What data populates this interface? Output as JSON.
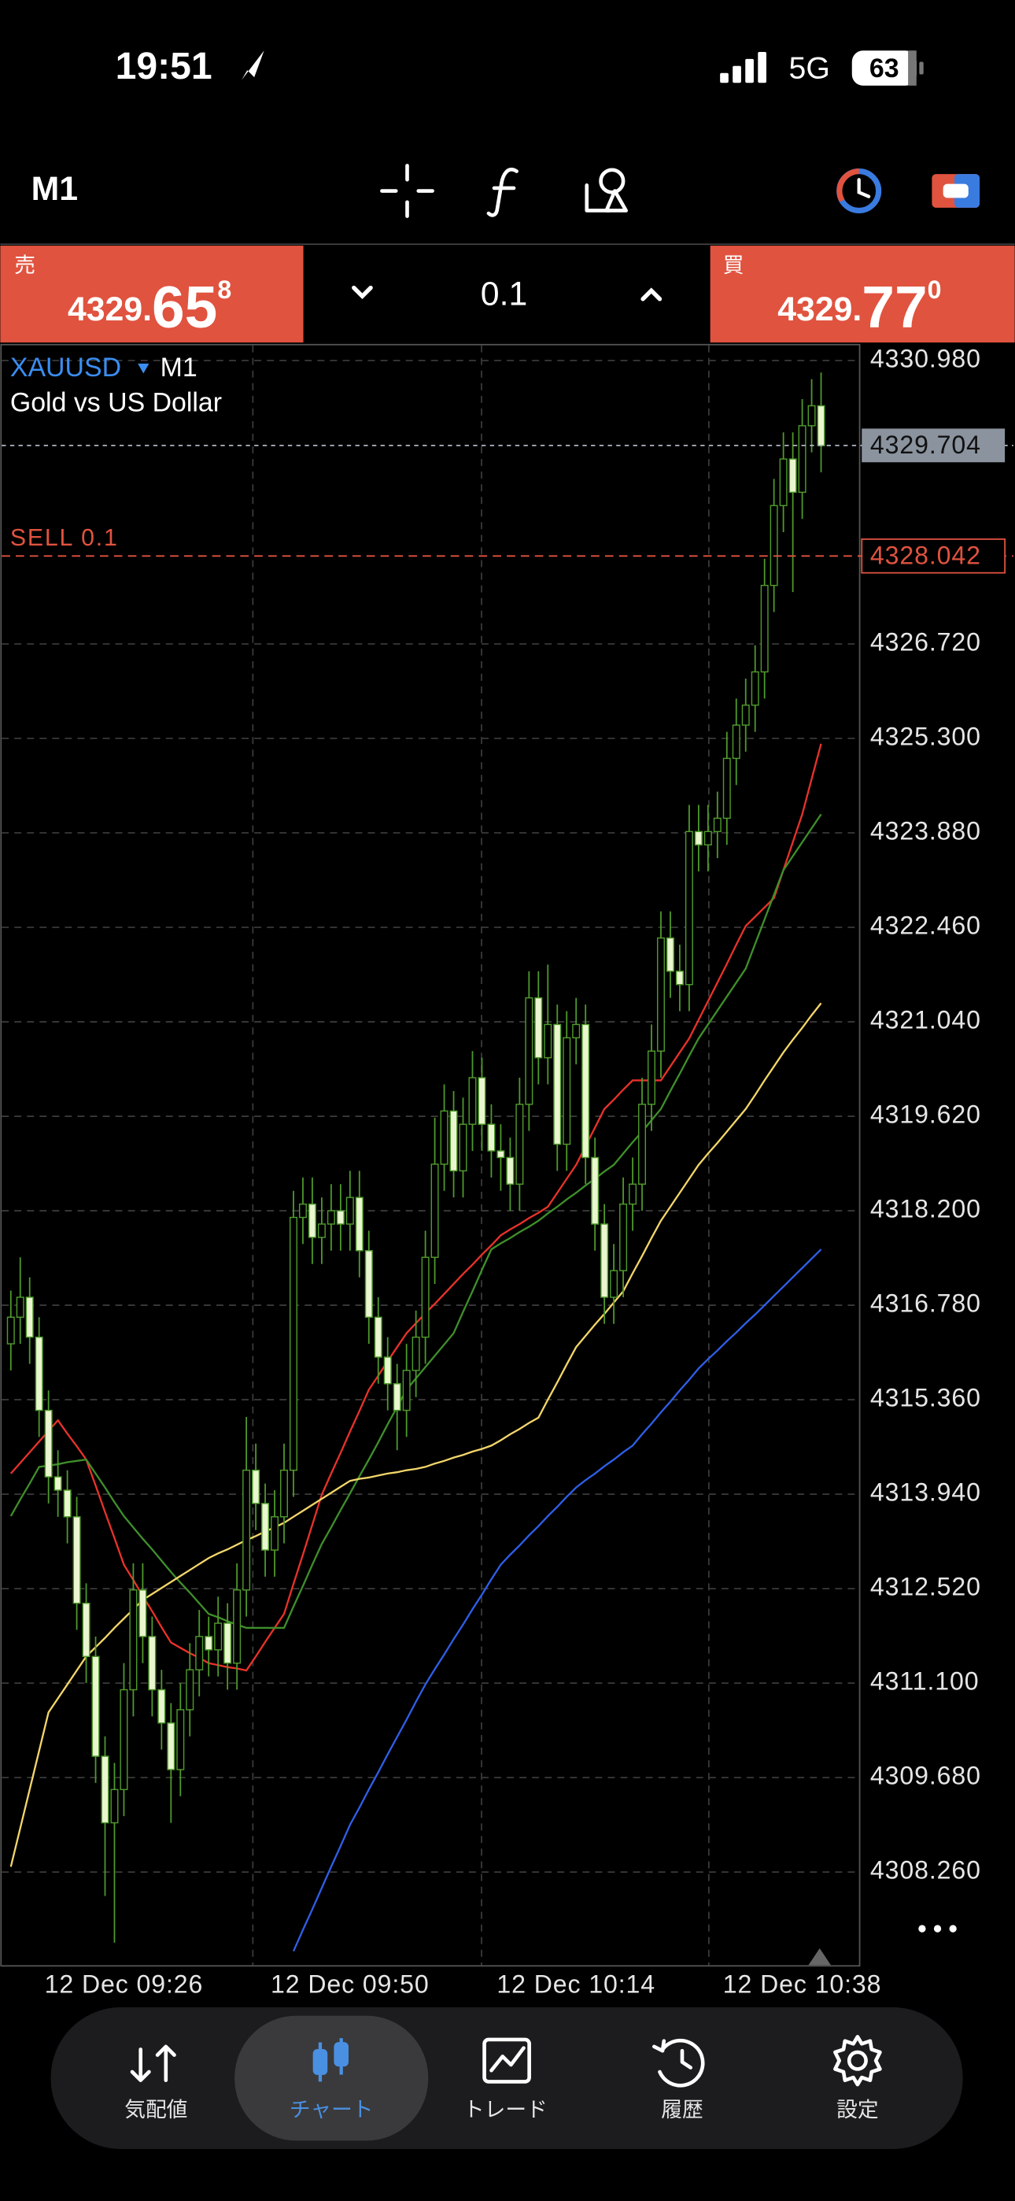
{
  "status_bar": {
    "time": "19:51",
    "network": "5G",
    "battery": "63"
  },
  "toolbar": {
    "timeframe": "M1"
  },
  "trade_panel": {
    "sell": {
      "label": "売",
      "price_small": "4329.",
      "price_big": "65",
      "price_sup": "8"
    },
    "volume": "0.1",
    "buy": {
      "label": "買",
      "price_small": "4329.",
      "price_big": "77",
      "price_sup": "0"
    }
  },
  "chart_data": {
    "type": "candlestick",
    "symbol": "XAUUSD",
    "timeframe": "M1",
    "subtitle": "Gold vs US Dollar",
    "categories": [
      null,
      null,
      null,
      null,
      null,
      null,
      null,
      null,
      null,
      null,
      null,
      null,
      "12 Dec 09:26",
      null,
      null,
      null,
      null,
      null,
      null,
      null,
      null,
      null,
      null,
      null,
      null,
      null,
      null,
      null,
      null,
      null,
      null,
      null,
      null,
      null,
      null,
      null,
      "12 Dec 09:50",
      null,
      null,
      null,
      null,
      null,
      null,
      null,
      null,
      null,
      null,
      null,
      null,
      null,
      null,
      null,
      null,
      null,
      null,
      null,
      null,
      null,
      null,
      null,
      "12 Dec 10:14",
      null,
      null,
      null,
      null,
      null,
      null,
      null,
      null,
      null,
      null,
      null,
      null,
      null,
      null,
      null,
      null,
      null,
      null,
      null,
      null,
      null,
      null,
      null,
      "12 Dec 10:38",
      null,
      null
    ],
    "open": [
      4316.2,
      4316.6,
      4316.9,
      4316.3,
      4315.2,
      4314.2,
      4314.0,
      4313.6,
      4312.3,
      4311.5,
      4310.0,
      4309.0,
      4309.5,
      4311.0,
      4312.5,
      4311.8,
      4311.0,
      4310.5,
      4309.8,
      4310.7,
      4311.3,
      4311.8,
      4311.6,
      4312.0,
      4311.4,
      4312.5,
      4314.3,
      4313.8,
      4313.1,
      4313.6,
      4314.3,
      4318.1,
      4318.3,
      4317.8,
      4318.0,
      4318.2,
      4318.0,
      4318.4,
      4317.6,
      4316.6,
      4316.0,
      4315.6,
      4315.2,
      4315.8,
      4316.3,
      4317.5,
      4318.9,
      4319.7,
      4318.8,
      4319.5,
      4320.2,
      4319.5,
      4319.1,
      4319.0,
      4318.6,
      4319.8,
      4321.4,
      4320.5,
      4321.0,
      4319.2,
      4320.8,
      4321.0,
      4319.0,
      4318.0,
      4316.9,
      4317.3,
      4318.3,
      4318.6,
      4319.8,
      4320.6,
      4322.3,
      4321.8,
      4321.6,
      4323.9,
      4323.7,
      4323.9,
      4324.1,
      4325.0,
      4325.5,
      4325.8,
      4326.3,
      4327.6,
      4328.8,
      4329.5,
      4329.0,
      4330.0,
      4330.3
    ],
    "high": [
      4317.0,
      4317.5,
      4317.2,
      4316.6,
      4315.5,
      4314.6,
      4314.3,
      4313.9,
      4312.6,
      4311.8,
      4310.3,
      4309.9,
      4311.4,
      4312.9,
      4312.9,
      4312.1,
      4311.3,
      4310.8,
      4311.1,
      4311.7,
      4312.2,
      4312.1,
      4312.4,
      4312.3,
      4312.9,
      4315.1,
      4314.7,
      4314.1,
      4314.0,
      4314.7,
      4318.5,
      4318.7,
      4318.7,
      4318.4,
      4318.6,
      4318.6,
      4318.8,
      4318.8,
      4317.9,
      4316.9,
      4316.3,
      4315.9,
      4316.2,
      4316.7,
      4317.9,
      4319.6,
      4320.1,
      4320.0,
      4319.9,
      4320.6,
      4320.5,
      4319.8,
      4319.5,
      4319.3,
      4320.2,
      4321.8,
      4321.8,
      4321.9,
      4321.3,
      4321.2,
      4321.4,
      4321.3,
      4319.3,
      4318.3,
      4317.7,
      4318.7,
      4319.0,
      4320.2,
      4321.0,
      4322.7,
      4322.7,
      4322.2,
      4324.3,
      4324.3,
      4324.3,
      4324.5,
      4325.4,
      4325.9,
      4326.2,
      4326.7,
      4328.0,
      4329.2,
      4329.9,
      4329.9,
      4330.4,
      4330.7,
      4330.8
    ],
    "low": [
      4315.8,
      4316.2,
      4315.9,
      4314.8,
      4313.8,
      4313.6,
      4313.2,
      4311.9,
      4311.1,
      4309.6,
      4307.9,
      4307.2,
      4309.1,
      4310.6,
      4311.4,
      4310.6,
      4310.1,
      4309.0,
      4309.4,
      4310.3,
      4310.9,
      4311.2,
      4311.2,
      4311.0,
      4311.0,
      4312.1,
      4313.4,
      4312.7,
      4312.7,
      4313.2,
      4313.9,
      4317.7,
      4317.4,
      4317.4,
      4317.6,
      4317.6,
      4317.6,
      4317.2,
      4316.2,
      4315.6,
      4315.2,
      4314.6,
      4314.8,
      4315.4,
      4315.9,
      4317.1,
      4318.5,
      4318.4,
      4318.4,
      4319.1,
      4319.1,
      4318.7,
      4318.5,
      4318.2,
      4318.2,
      4319.4,
      4320.1,
      4320.1,
      4318.8,
      4318.8,
      4320.4,
      4318.6,
      4317.6,
      4316.5,
      4316.5,
      4316.9,
      4317.9,
      4318.2,
      4319.4,
      4320.2,
      4321.4,
      4321.2,
      4321.2,
      4323.3,
      4323.3,
      4323.5,
      4323.7,
      4324.6,
      4325.1,
      4325.4,
      4325.9,
      4327.2,
      4328.4,
      4327.5,
      4328.6,
      4329.6,
      4329.3
    ],
    "close": [
      4316.6,
      4316.9,
      4316.3,
      4315.2,
      4314.2,
      4314.0,
      4313.6,
      4312.3,
      4311.5,
      4310.0,
      4309.0,
      4309.5,
      4311.0,
      4312.5,
      4311.8,
      4311.0,
      4310.5,
      4309.8,
      4310.7,
      4311.3,
      4311.8,
      4311.6,
      4312.0,
      4311.4,
      4312.5,
      4314.3,
      4313.8,
      4313.1,
      4313.6,
      4314.3,
      4318.1,
      4318.3,
      4317.8,
      4318.0,
      4318.2,
      4318.0,
      4318.4,
      4317.6,
      4316.6,
      4316.0,
      4315.6,
      4315.2,
      4315.8,
      4316.3,
      4317.5,
      4318.9,
      4319.7,
      4318.8,
      4319.5,
      4320.2,
      4319.5,
      4319.1,
      4319.0,
      4318.6,
      4319.8,
      4321.4,
      4320.5,
      4321.0,
      4319.2,
      4320.8,
      4321.0,
      4319.0,
      4318.0,
      4316.9,
      4317.3,
      4318.3,
      4318.6,
      4319.8,
      4320.6,
      4322.3,
      4321.8,
      4321.6,
      4323.9,
      4323.7,
      4323.9,
      4324.1,
      4325.0,
      4325.5,
      4325.8,
      4326.3,
      4327.6,
      4328.8,
      4329.5,
      4329.0,
      4330.0,
      4330.3,
      4329.7
    ],
    "up_color": "#000000",
    "down_color": "#eaf6cf",
    "wick_color": "#4f9a2c",
    "indicators": [
      {
        "color": "#e8322b",
        "values": [
          4314.25,
          4314.41,
          4314.57,
          4314.73,
          4314.89,
          4315.05,
          4314.85,
          4314.66,
          4314.46,
          4314.07,
          4313.67,
          4313.28,
          4312.88,
          4312.65,
          4312.41,
          4312.18,
          4311.94,
          4311.71,
          4311.63,
          4311.55,
          4311.48,
          4311.4,
          4311.37,
          4311.34,
          4311.32,
          4311.29,
          4311.5,
          4311.72,
          4311.93,
          4312.14,
          4312.59,
          4313.03,
          4313.48,
          4313.93,
          4314.25,
          4314.56,
          4314.88,
          4315.19,
          4315.51,
          4315.72,
          4315.94,
          4316.15,
          4316.36,
          4316.51,
          4316.66,
          4316.8,
          4316.95,
          4317.1,
          4317.25,
          4317.39,
          4317.54,
          4317.68,
          4317.83,
          4317.92,
          4318.0,
          4318.09,
          4318.17,
          4318.26,
          4318.47,
          4318.68,
          4318.89,
          4319.17,
          4319.45,
          4319.73,
          4319.87,
          4320.02,
          4320.16,
          4320.16,
          4320.16,
          4320.16,
          4320.37,
          4320.58,
          4320.79,
          4321.07,
          4321.35,
          4321.63,
          4321.91,
          4322.2,
          4322.48,
          4322.62,
          4322.76,
          4322.9,
          4323.32,
          4323.74,
          4324.16,
          4324.69,
          4325.22
        ]
      },
      {
        "color": "#3f8f2a",
        "values": [
          4313.61,
          4313.86,
          4314.1,
          4314.35,
          4314.37,
          4314.39,
          4314.42,
          4314.44,
          4314.46,
          4314.25,
          4314.04,
          4313.82,
          4313.61,
          4313.44,
          4313.27,
          4313.11,
          4312.94,
          4312.77,
          4312.61,
          4312.46,
          4312.3,
          4312.14,
          4312.09,
          4312.03,
          4311.98,
          4311.93,
          4311.93,
          4311.93,
          4311.93,
          4311.93,
          4312.25,
          4312.56,
          4312.88,
          4313.19,
          4313.44,
          4313.7,
          4313.95,
          4314.21,
          4314.46,
          4314.72,
          4314.99,
          4315.25,
          4315.51,
          4315.68,
          4315.85,
          4316.02,
          4316.19,
          4316.36,
          4316.68,
          4316.99,
          4317.31,
          4317.62,
          4317.71,
          4317.79,
          4317.88,
          4317.96,
          4318.05,
          4318.16,
          4318.26,
          4318.37,
          4318.47,
          4318.58,
          4318.68,
          4318.79,
          4318.89,
          4319.06,
          4319.23,
          4319.39,
          4319.56,
          4319.73,
          4320.0,
          4320.26,
          4320.53,
          4320.79,
          4321.0,
          4321.21,
          4321.42,
          4321.63,
          4321.84,
          4322.21,
          4322.58,
          4322.95,
          4323.32,
          4323.53,
          4323.74,
          4323.95,
          4324.16
        ]
      },
      {
        "color": "#f3d66a",
        "values": [
          4308.34,
          4308.92,
          4309.5,
          4310.08,
          4310.66,
          4310.87,
          4311.08,
          4311.29,
          4311.5,
          4311.64,
          4311.78,
          4311.93,
          4312.07,
          4312.21,
          4312.35,
          4312.44,
          4312.53,
          4312.62,
          4312.71,
          4312.8,
          4312.89,
          4312.98,
          4313.05,
          4313.11,
          4313.18,
          4313.25,
          4313.31,
          4313.38,
          4313.44,
          4313.51,
          4313.6,
          4313.69,
          4313.78,
          4313.87,
          4313.96,
          4314.05,
          4314.14,
          4314.17,
          4314.19,
          4314.22,
          4314.25,
          4314.27,
          4314.3,
          4314.32,
          4314.35,
          4314.4,
          4314.44,
          4314.49,
          4314.53,
          4314.58,
          4314.62,
          4314.67,
          4314.75,
          4314.84,
          4314.92,
          4315.01,
          4315.09,
          4315.36,
          4315.62,
          4315.89,
          4316.15,
          4316.32,
          4316.49,
          4316.65,
          4316.82,
          4316.99,
          4317.26,
          4317.52,
          4317.79,
          4318.05,
          4318.26,
          4318.47,
          4318.68,
          4318.89,
          4319.06,
          4319.22,
          4319.39,
          4319.56,
          4319.73,
          4319.94,
          4320.16,
          4320.37,
          4320.58,
          4320.77,
          4320.95,
          4321.14,
          4321.32
        ]
      },
      {
        "color": "#2f5fe8",
        "values": [
          null,
          null,
          null,
          null,
          null,
          null,
          null,
          null,
          null,
          null,
          null,
          null,
          null,
          null,
          null,
          null,
          null,
          null,
          null,
          null,
          null,
          null,
          null,
          null,
          null,
          null,
          null,
          null,
          null,
          null,
          4307.07,
          4307.39,
          4307.7,
          4308.02,
          4308.34,
          4308.65,
          4308.97,
          4309.23,
          4309.5,
          4309.76,
          4310.03,
          4310.29,
          4310.55,
          4310.82,
          4311.08,
          4311.31,
          4311.53,
          4311.76,
          4311.98,
          4312.21,
          4312.43,
          4312.66,
          4312.88,
          4313.03,
          4313.17,
          4313.32,
          4313.46,
          4313.61,
          4313.75,
          4313.9,
          4314.04,
          4314.15,
          4314.25,
          4314.36,
          4314.46,
          4314.57,
          4314.67,
          4314.84,
          4315.0,
          4315.17,
          4315.33,
          4315.5,
          4315.66,
          4315.83,
          4315.97,
          4316.1,
          4316.24,
          4316.37,
          4316.51,
          4316.64,
          4316.78,
          4316.92,
          4317.06,
          4317.2,
          4317.34,
          4317.48,
          4317.62
        ]
      }
    ],
    "ylim": [
      4306.86,
      4331.23
    ],
    "yticks": [
      {
        "value": 4330.98,
        "label": "4330.980"
      },
      {
        "value": 4326.72,
        "label": "4326.720"
      },
      {
        "value": 4325.3,
        "label": "4325.300"
      },
      {
        "value": 4323.88,
        "label": "4323.880"
      },
      {
        "value": 4322.46,
        "label": "4322.460"
      },
      {
        "value": 4321.04,
        "label": "4321.040"
      },
      {
        "value": 4319.62,
        "label": "4319.620"
      },
      {
        "value": 4318.2,
        "label": "4318.200"
      },
      {
        "value": 4316.78,
        "label": "4316.780"
      },
      {
        "value": 4315.36,
        "label": "4315.360"
      },
      {
        "value": 4313.94,
        "label": "4313.940"
      },
      {
        "value": 4312.52,
        "label": "4312.520"
      },
      {
        "value": 4311.1,
        "label": "4311.100"
      },
      {
        "value": 4309.68,
        "label": "4309.680"
      },
      {
        "value": 4308.26,
        "label": "4308.260"
      }
    ],
    "grid": true,
    "bid_price": 4329.704,
    "position": {
      "label": "SELL 0.1",
      "price": 4328.042
    }
  },
  "tab_bar": {
    "tabs": [
      "気配値",
      "チャート",
      "トレード",
      "履歴",
      "設定"
    ],
    "active": 1
  }
}
